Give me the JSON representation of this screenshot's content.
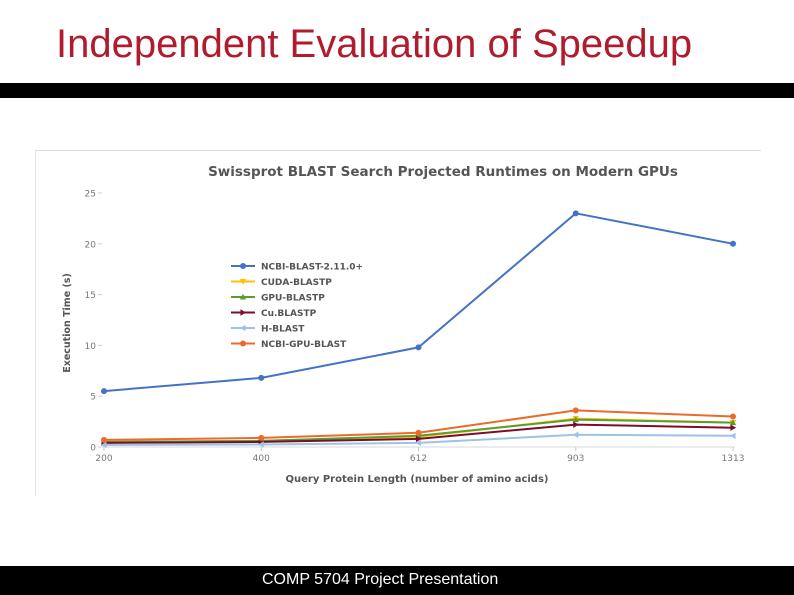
{
  "slide": {
    "title": "Independent Evaluation of Speedup",
    "footer": "COMP 5704 Project Presentation"
  },
  "chart_data": {
    "type": "line",
    "title": "Swissprot BLAST Search Projected Runtimes on Modern GPUs",
    "xlabel": "Query Protein Length (number of amino acids)",
    "ylabel": "Execution Time (s)",
    "categories": [
      "200",
      "400",
      "612",
      "903",
      "1313"
    ],
    "ylim": [
      0,
      25
    ],
    "yticks": [
      "0",
      "5",
      "10",
      "15",
      "20",
      "25"
    ],
    "grid": false,
    "legend_position": "upper-left",
    "series": [
      {
        "name": "NCBI-BLAST-2.11.0+",
        "color": "#4472c4",
        "marker": "circle",
        "values": [
          5.5,
          6.8,
          9.8,
          23.0,
          20.0
        ]
      },
      {
        "name": "CUDA-BLASTP",
        "color": "#ffc000",
        "marker": "triangle-down",
        "values": [
          0.5,
          0.6,
          1.0,
          2.8,
          2.4
        ]
      },
      {
        "name": "GPU-BLASTP",
        "color": "#5a9e2f",
        "marker": "triangle-up",
        "values": [
          0.5,
          0.6,
          1.1,
          2.7,
          2.4
        ]
      },
      {
        "name": "Cu.BLASTP",
        "color": "#7b0d2e",
        "marker": "triangle-right",
        "values": [
          0.4,
          0.5,
          0.8,
          2.2,
          1.9
        ]
      },
      {
        "name": "H-BLAST",
        "color": "#9dc3e6",
        "marker": "triangle-left",
        "values": [
          0.2,
          0.25,
          0.4,
          1.2,
          1.1
        ]
      },
      {
        "name": "NCBI-GPU-BLAST",
        "color": "#ed6a2c",
        "marker": "circle",
        "values": [
          0.7,
          0.9,
          1.4,
          3.6,
          3.0
        ]
      }
    ]
  }
}
